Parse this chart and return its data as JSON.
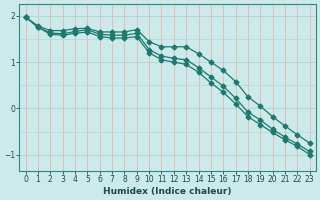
{
  "xlabel": "Humidex (Indice chaleur)",
  "bg_color": "#cdeaea",
  "grid_color_major": "#b0d8d8",
  "grid_color_minor": "#e8b8b8",
  "line_color": "#1a7a6e",
  "xlim": [
    -0.5,
    23.5
  ],
  "ylim": [
    -1.35,
    2.25
  ],
  "yticks": [
    -1,
    0,
    1,
    2
  ],
  "xticks": [
    0,
    1,
    2,
    3,
    4,
    5,
    6,
    7,
    8,
    9,
    10,
    11,
    12,
    13,
    14,
    15,
    16,
    17,
    18,
    19,
    20,
    21,
    22,
    23
  ],
  "line1_x": [
    0,
    1,
    2,
    3,
    4,
    5,
    6,
    7,
    8,
    9,
    10,
    11,
    12,
    13,
    14,
    15,
    16,
    17,
    18,
    19,
    20,
    21,
    22,
    23
  ],
  "line1_y": [
    1.97,
    1.78,
    1.68,
    1.68,
    1.72,
    1.73,
    1.65,
    1.65,
    1.65,
    1.7,
    1.44,
    1.33,
    1.33,
    1.33,
    1.18,
    1.0,
    0.82,
    0.58,
    0.25,
    0.05,
    -0.18,
    -0.38,
    -0.57,
    -0.75
  ],
  "line2_x": [
    0,
    1,
    2,
    3,
    4,
    5,
    6,
    7,
    8,
    9,
    10,
    11,
    12,
    13,
    14,
    15,
    16,
    17,
    18,
    19,
    20,
    21,
    22,
    23
  ],
  "line2_y": [
    1.97,
    1.75,
    1.63,
    1.61,
    1.66,
    1.7,
    1.6,
    1.58,
    1.58,
    1.62,
    1.27,
    1.13,
    1.08,
    1.05,
    0.88,
    0.68,
    0.48,
    0.22,
    -0.08,
    -0.25,
    -0.45,
    -0.62,
    -0.77,
    -0.93
  ],
  "line3_x": [
    0,
    1,
    2,
    3,
    4,
    5,
    6,
    7,
    8,
    9,
    10,
    11,
    12,
    13,
    14,
    15,
    16,
    17,
    18,
    19,
    20,
    21,
    22,
    23
  ],
  "line3_y": [
    1.97,
    1.75,
    1.6,
    1.58,
    1.62,
    1.65,
    1.55,
    1.52,
    1.52,
    1.55,
    1.2,
    1.05,
    1.0,
    0.95,
    0.78,
    0.55,
    0.35,
    0.1,
    -0.18,
    -0.35,
    -0.52,
    -0.68,
    -0.82,
    -1.0
  ]
}
